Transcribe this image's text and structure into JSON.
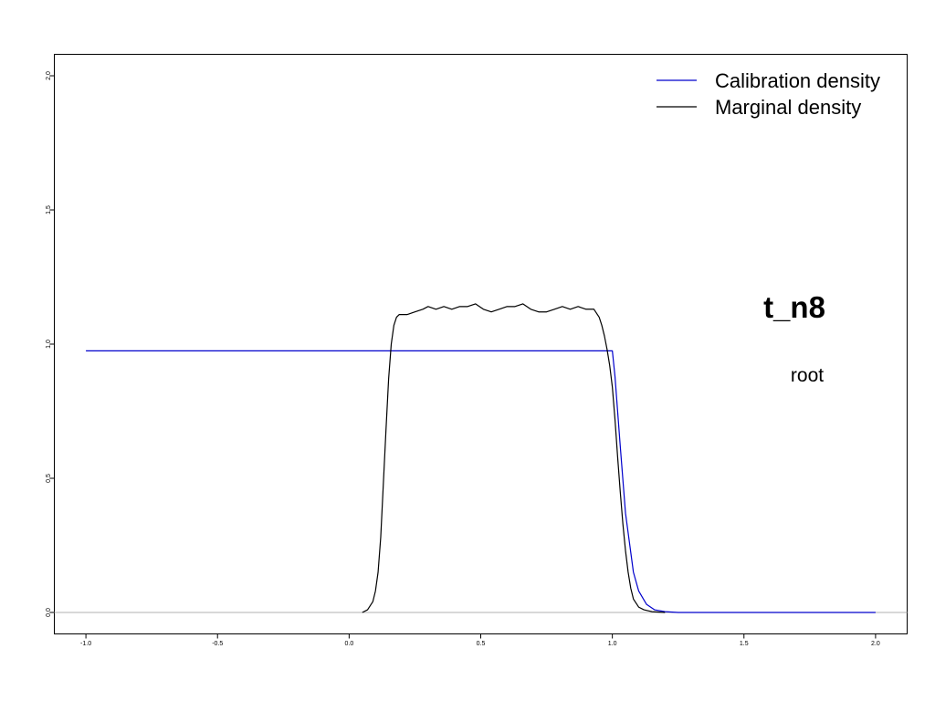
{
  "chart_data": {
    "type": "line",
    "title": "",
    "xlabel": "",
    "ylabel": "",
    "xlim": [
      -1.12,
      2.12
    ],
    "ylim": [
      -0.08,
      2.08
    ],
    "x_ticks": [
      "-1.0",
      "-0.5",
      "0.0",
      "0.5",
      "1.0",
      "1.5",
      "2.0"
    ],
    "y_ticks": [
      "0.0",
      "0.5",
      "1.0",
      "1.5",
      "2.0"
    ],
    "grid": false,
    "legend_position": "top-right",
    "reference_line_y": 0,
    "annotations": {
      "title": "t_n8",
      "subtitle": "root"
    },
    "series": [
      {
        "name": "Calibration density",
        "color": "#0000cc",
        "x": [
          -1.0,
          0.5,
          1.0,
          1.01,
          1.03,
          1.05,
          1.08,
          1.1,
          1.13,
          1.16,
          1.2,
          1.25,
          1.5,
          2.0
        ],
        "y": [
          0.975,
          0.975,
          0.975,
          0.88,
          0.62,
          0.37,
          0.15,
          0.08,
          0.03,
          0.01,
          0.003,
          0.0,
          0.0,
          0.0
        ]
      },
      {
        "name": "Marginal density",
        "color": "#000000",
        "x": [
          0.05,
          0.07,
          0.09,
          0.1,
          0.11,
          0.12,
          0.13,
          0.14,
          0.15,
          0.16,
          0.17,
          0.18,
          0.19,
          0.2,
          0.22,
          0.25,
          0.28,
          0.3,
          0.33,
          0.36,
          0.39,
          0.42,
          0.45,
          0.48,
          0.51,
          0.54,
          0.57,
          0.6,
          0.63,
          0.66,
          0.69,
          0.72,
          0.75,
          0.78,
          0.81,
          0.84,
          0.87,
          0.9,
          0.93,
          0.95,
          0.96,
          0.97,
          0.98,
          0.99,
          1.0,
          1.01,
          1.02,
          1.03,
          1.04,
          1.05,
          1.06,
          1.07,
          1.08,
          1.1,
          1.12,
          1.15,
          1.2
        ],
        "y": [
          0.0,
          0.01,
          0.04,
          0.08,
          0.15,
          0.28,
          0.48,
          0.68,
          0.87,
          1.0,
          1.07,
          1.1,
          1.11,
          1.11,
          1.11,
          1.12,
          1.13,
          1.14,
          1.13,
          1.14,
          1.13,
          1.14,
          1.14,
          1.15,
          1.13,
          1.12,
          1.13,
          1.14,
          1.14,
          1.15,
          1.13,
          1.12,
          1.12,
          1.13,
          1.14,
          1.13,
          1.14,
          1.13,
          1.13,
          1.1,
          1.07,
          1.03,
          0.98,
          0.92,
          0.84,
          0.72,
          0.58,
          0.45,
          0.33,
          0.23,
          0.15,
          0.09,
          0.05,
          0.02,
          0.01,
          0.003,
          0.0
        ]
      }
    ]
  }
}
